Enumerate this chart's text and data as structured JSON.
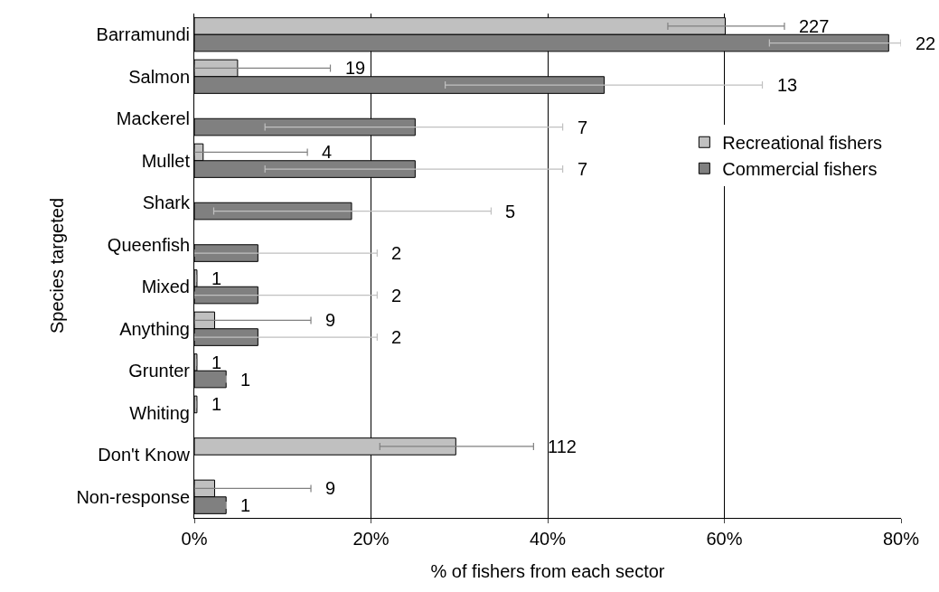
{
  "chart_data": {
    "type": "bar",
    "orientation": "horizontal",
    "xlabel": "% of fishers from each sector",
    "ylabel": "Species targeted",
    "categories": [
      "Barramundi",
      "Salmon",
      "Mackerel",
      "Mullet",
      "Shark",
      "Queenfish",
      "Mixed",
      "Anything",
      "Grunter",
      "Whiting",
      "Don't Know",
      "Non-response"
    ],
    "series": [
      {
        "name": "Recreational fishers",
        "color": "#c0c0c0",
        "values": [
          60.1,
          4.9,
          null,
          1.0,
          null,
          null,
          0.3,
          2.3,
          0.3,
          0.3,
          29.6,
          2.3
        ],
        "errors": [
          [
            53.6,
            66.8
          ],
          [
            0,
            15.4
          ],
          null,
          [
            0,
            12.8
          ],
          null,
          null,
          null,
          [
            0,
            13.2
          ],
          null,
          null,
          [
            21.0,
            38.4
          ],
          [
            0,
            13.2
          ]
        ]
      },
      {
        "name": "Commercial fishers",
        "color": "#808080",
        "values": [
          78.6,
          46.4,
          25.0,
          25.0,
          17.8,
          7.2,
          7.2,
          7.2,
          3.6,
          null,
          null,
          3.6
        ],
        "errors": [
          [
            65.1,
            80
          ],
          [
            28.4,
            64.3
          ],
          [
            8.0,
            41.7
          ],
          [
            8.0,
            41.7
          ],
          [
            2.2,
            33.6
          ],
          [
            0,
            20.7
          ],
          [
            0,
            20.7
          ],
          [
            0,
            20.7
          ],
          null,
          null,
          null,
          null
        ]
      }
    ],
    "annotations": [
      "227",
      "22",
      "19",
      "13",
      "7",
      "4",
      "7",
      "5",
      "2",
      "1",
      "2",
      "9",
      "2",
      "1",
      "1",
      "1",
      "112",
      "9",
      "1"
    ],
    "xlim": [
      0,
      80
    ],
    "xticks": [
      {
        "value": 0,
        "label": "0%"
      },
      {
        "value": 20,
        "label": "20%"
      },
      {
        "value": 40,
        "label": "40%"
      },
      {
        "value": 60,
        "label": "60%"
      },
      {
        "value": 80,
        "label": "80%"
      }
    ],
    "grid": "x",
    "legend": "top right"
  }
}
